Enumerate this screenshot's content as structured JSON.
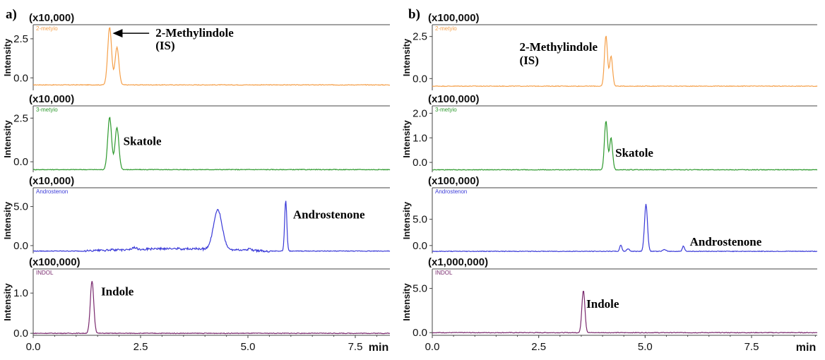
{
  "colors": {
    "orange": "#f5a04a",
    "green": "#2e9a2e",
    "blue": "#3a3ad8",
    "purple": "#7a2a6e"
  },
  "chart_data": [
    {
      "panel": "a)",
      "type": "line",
      "x_unit": "min",
      "xlim": [
        0,
        8.3
      ],
      "x_ticks": [
        "0.0",
        "2.5",
        "5.0",
        "7.5"
      ],
      "traces": [
        {
          "name": "2-metyio",
          "color_key": "orange",
          "scale_label": "(x10,000)",
          "ylabel": "Intensity",
          "ylim": [
            -0.8,
            3.4
          ],
          "y_ticks": [
            "0.0",
            "2.5"
          ],
          "y_tick_values": [
            0,
            2.5
          ],
          "baseline": -0.45,
          "peaks": [
            {
              "x": 1.78,
              "h": 3.7,
              "w": 0.045
            },
            {
              "x": 1.95,
              "h": 2.4,
              "w": 0.045
            }
          ],
          "annotations": [
            {
              "text": "2-Methylindole",
              "x": 2.85,
              "y": 2.9
            },
            {
              "text": "(IS)",
              "x": 2.85,
              "y": 2.1
            }
          ],
          "arrow": {
            "from": [
              2.7,
              2.85
            ],
            "to": [
              1.85,
              2.85
            ]
          }
        },
        {
          "name": "3-metyio",
          "color_key": "green",
          "scale_label": "(x10,000)",
          "ylabel": "Intensity",
          "ylim": [
            -0.6,
            3.2
          ],
          "y_ticks": [
            "0.0",
            "2.5"
          ],
          "y_tick_values": [
            0,
            2.5
          ],
          "baseline": -0.45,
          "peaks": [
            {
              "x": 1.78,
              "h": 3.0,
              "w": 0.045
            },
            {
              "x": 1.95,
              "h": 2.4,
              "w": 0.045
            }
          ],
          "annotations": [
            {
              "text": "Skatole",
              "x": 2.1,
              "y": 1.2
            }
          ]
        },
        {
          "name": "Androstenon",
          "color_key": "blue",
          "scale_label": "(x10,000)",
          "ylabel": "Intensity",
          "ylim": [
            -1.0,
            7.4
          ],
          "y_ticks": [
            "0.0",
            "5.0"
          ],
          "y_tick_values": [
            0,
            5
          ],
          "baseline": -0.7,
          "peaks": [
            {
              "x": 4.3,
              "h": 5.0,
              "w": 0.1
            },
            {
              "x": 5.88,
              "h": 6.5,
              "w": 0.025
            },
            {
              "x": 5.05,
              "h": 0.3,
              "w": 0.03
            },
            {
              "x": 2.35,
              "h": 0.2,
              "w": 0.05
            }
          ],
          "hump": {
            "from": 1.2,
            "to": 5.5,
            "h": 0.3
          },
          "annotations": [
            {
              "text": "Androstenone",
              "x": 6.05,
              "y": 4.0
            }
          ]
        },
        {
          "name": "INDOL",
          "color_key": "purple",
          "scale_label": "(x100,000)",
          "ylabel": "Intensity",
          "ylim": [
            -0.05,
            1.6
          ],
          "y_ticks": [
            "0.0",
            "1.0"
          ],
          "y_tick_values": [
            0,
            1
          ],
          "baseline": 0.0,
          "peaks": [
            {
              "x": 1.37,
              "h": 1.3,
              "w": 0.04
            }
          ],
          "annotations": [
            {
              "text": "Indole",
              "x": 1.58,
              "y": 1.05
            }
          ]
        }
      ]
    },
    {
      "panel": "b)",
      "type": "line",
      "x_unit": "min",
      "xlim": [
        0,
        9.0
      ],
      "x_ticks": [
        "0.0",
        "2.5",
        "5.0",
        "7.5"
      ],
      "traces": [
        {
          "name": "2-metyio",
          "color_key": "orange",
          "scale_label": "(x100,000)",
          "ylabel": "Intensity",
          "ylim": [
            -0.7,
            3.2
          ],
          "y_ticks": [
            "0.0",
            "2.5"
          ],
          "y_tick_values": [
            0,
            2.5
          ],
          "baseline": -0.45,
          "peaks": [
            {
              "x": 4.08,
              "h": 3.0,
              "w": 0.035
            },
            {
              "x": 4.2,
              "h": 1.8,
              "w": 0.035
            }
          ],
          "annotations": [
            {
              "text": "2-Methylindole",
              "x": 2.05,
              "y": 1.9
            },
            {
              "text": "(IS)",
              "x": 2.05,
              "y": 1.1
            }
          ]
        },
        {
          "name": "3-metyio",
          "color_key": "green",
          "scale_label": "(x100,000)",
          "ylabel": "Intensity",
          "ylim": [
            -0.4,
            2.3
          ],
          "y_ticks": [
            "0.0",
            "1.0",
            "2.0"
          ],
          "y_tick_values": [
            0,
            1,
            2
          ],
          "baseline": -0.3,
          "peaks": [
            {
              "x": 4.08,
              "h": 2.0,
              "w": 0.035
            },
            {
              "x": 4.2,
              "h": 1.3,
              "w": 0.035
            }
          ],
          "annotations": [
            {
              "text": "Skatole",
              "x": 4.3,
              "y": 0.4
            }
          ]
        },
        {
          "name": "Androstenon",
          "color_key": "blue",
          "scale_label": "(x100,000)",
          "ylabel": "Intensity",
          "ylim": [
            -1.5,
            11.0
          ],
          "y_ticks": [
            "0.0",
            "5.0"
          ],
          "y_tick_values": [
            0,
            5
          ],
          "baseline": -1.1,
          "peaks": [
            {
              "x": 5.02,
              "h": 9.0,
              "w": 0.035
            },
            {
              "x": 4.43,
              "h": 1.2,
              "w": 0.025
            },
            {
              "x": 4.6,
              "h": 0.5,
              "w": 0.03
            },
            {
              "x": 5.9,
              "h": 1.0,
              "w": 0.025
            },
            {
              "x": 5.45,
              "h": 0.3,
              "w": 0.04
            }
          ],
          "annotations": [
            {
              "text": "Androstenone",
              "x": 6.05,
              "y": 0.8
            }
          ]
        },
        {
          "name": "INDOL",
          "color_key": "purple",
          "scale_label": "(x1,000,000)",
          "ylabel": "Intensity",
          "ylim": [
            -0.3,
            7.2
          ],
          "y_ticks": [
            "0.0",
            "5.0"
          ],
          "y_tick_values": [
            0,
            5
          ],
          "baseline": 0.0,
          "peaks": [
            {
              "x": 3.55,
              "h": 4.8,
              "w": 0.035
            }
          ],
          "annotations": [
            {
              "text": "Indole",
              "x": 3.62,
              "y": 3.3
            }
          ]
        }
      ]
    }
  ]
}
